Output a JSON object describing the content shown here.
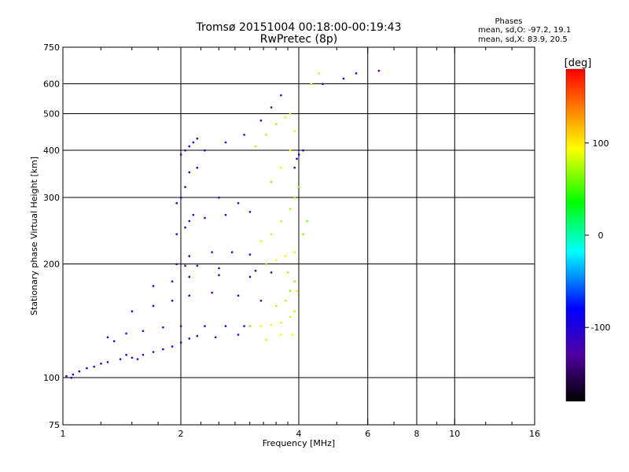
{
  "chart_data": {
    "type": "scatter",
    "title": "Tromsø 20151004 00:18:00-00:19:43",
    "subtitle": "RwPretec (8p)",
    "xlabel": "Frequency [MHz]",
    "ylabel": "Stationary phase Virtual Height [km]",
    "x_scale": "log",
    "y_scale": "log",
    "xlim": [
      1,
      16
    ],
    "ylim": [
      75,
      750
    ],
    "x_ticks": [
      1,
      2,
      4,
      6,
      8,
      10,
      16
    ],
    "x_tick_labels": [
      "1",
      "2",
      "4",
      "6",
      "8",
      "10",
      "16"
    ],
    "x_grid": [
      2,
      4,
      6,
      8,
      10
    ],
    "x_minor_ticks": [
      1.25,
      1.5,
      1.75,
      2.25,
      2.5,
      2.75,
      3,
      3.25,
      3.5,
      3.75,
      5,
      7,
      9,
      12,
      14
    ],
    "y_ticks": [
      75,
      100,
      200,
      300,
      400,
      500,
      600,
      750
    ],
    "y_tick_labels": [
      "75",
      "100",
      "200",
      "300",
      "400",
      "500",
      "600",
      "750"
    ],
    "y_grid": [
      100,
      200,
      300,
      400,
      500,
      600
    ],
    "grid": true,
    "stats": {
      "heading": "Phases",
      "line1": "mean, sd,O: -97.2, 19.1",
      "line2": "mean, sd,X:  83.9, 20.5"
    },
    "colorbar": {
      "label": "[deg]",
      "range": [
        -180,
        180
      ],
      "ticks": [
        100,
        0,
        -100
      ],
      "tick_labels": [
        "100",
        "0",
        "-100"
      ],
      "colors": [
        "#ff0000",
        "#ff8000",
        "#ffff00",
        "#00ff00",
        "#00ffff",
        "#0000ff",
        "#5000a0",
        "#000000"
      ]
    },
    "series": [
      {
        "name": "O",
        "mean_phase": -97.2,
        "points": [
          [
            1.02,
            101
          ],
          [
            1.06,
            102
          ],
          [
            1.1,
            104
          ],
          [
            1.15,
            106
          ],
          [
            1.2,
            107
          ],
          [
            1.25,
            109
          ],
          [
            1.3,
            110
          ],
          [
            1.4,
            112
          ],
          [
            1.5,
            113
          ],
          [
            1.6,
            115
          ],
          [
            1.7,
            117
          ],
          [
            1.8,
            119
          ],
          [
            1.9,
            121
          ],
          [
            2.0,
            124
          ],
          [
            2.1,
            127
          ],
          [
            2.2,
            129
          ],
          [
            1.3,
            128
          ],
          [
            1.45,
            131
          ],
          [
            1.6,
            133
          ],
          [
            1.8,
            136
          ],
          [
            2.0,
            137
          ],
          [
            2.3,
            137
          ],
          [
            2.6,
            137
          ],
          [
            2.9,
            137
          ],
          [
            1.5,
            150
          ],
          [
            1.7,
            155
          ],
          [
            1.9,
            160
          ],
          [
            2.1,
            165
          ],
          [
            2.4,
            168
          ],
          [
            2.8,
            165
          ],
          [
            3.2,
            160
          ],
          [
            1.7,
            175
          ],
          [
            1.9,
            180
          ],
          [
            2.1,
            185
          ],
          [
            2.5,
            187
          ],
          [
            3.0,
            185
          ],
          [
            1.95,
            200
          ],
          [
            2.05,
            198
          ],
          [
            2.2,
            198
          ],
          [
            2.5,
            195
          ],
          [
            3.1,
            192
          ],
          [
            3.4,
            190
          ],
          [
            2.1,
            210
          ],
          [
            2.4,
            215
          ],
          [
            2.7,
            215
          ],
          [
            3.0,
            212
          ],
          [
            1.95,
            240
          ],
          [
            2.05,
            250
          ],
          [
            2.1,
            260
          ],
          [
            2.15,
            270
          ],
          [
            2.3,
            265
          ],
          [
            2.6,
            270
          ],
          [
            3.0,
            275
          ],
          [
            1.95,
            290
          ],
          [
            2.0,
            300
          ],
          [
            2.05,
            320
          ],
          [
            2.1,
            350
          ],
          [
            2.2,
            360
          ],
          [
            2.5,
            300
          ],
          [
            2.8,
            290
          ],
          [
            2.0,
            390
          ],
          [
            2.05,
            400
          ],
          [
            2.1,
            410
          ],
          [
            2.15,
            420
          ],
          [
            2.2,
            430
          ],
          [
            2.3,
            400
          ],
          [
            2.6,
            420
          ],
          [
            2.9,
            440
          ],
          [
            3.2,
            480
          ],
          [
            3.4,
            520
          ],
          [
            3.6,
            560
          ],
          [
            3.9,
            360
          ],
          [
            3.95,
            380
          ],
          [
            4.0,
            390
          ],
          [
            4.1,
            400
          ],
          [
            4.6,
            600
          ],
          [
            5.2,
            620
          ],
          [
            5.6,
            640
          ],
          [
            6.4,
            650
          ],
          [
            1.45,
            115
          ],
          [
            1.55,
            112
          ],
          [
            2.45,
            128
          ],
          [
            2.8,
            130
          ],
          [
            1.05,
            100
          ],
          [
            1.35,
            125
          ]
        ]
      },
      {
        "name": "X",
        "mean_phase": 83.9,
        "points": [
          [
            3.0,
            137
          ],
          [
            3.2,
            137
          ],
          [
            3.4,
            138
          ],
          [
            3.6,
            140
          ],
          [
            3.8,
            145
          ],
          [
            3.9,
            150
          ],
          [
            3.5,
            155
          ],
          [
            3.7,
            160
          ],
          [
            3.8,
            170
          ],
          [
            3.9,
            180
          ],
          [
            3.3,
            200
          ],
          [
            3.5,
            205
          ],
          [
            3.7,
            210
          ],
          [
            3.9,
            215
          ],
          [
            3.2,
            230
          ],
          [
            3.4,
            240
          ],
          [
            3.6,
            260
          ],
          [
            3.8,
            280
          ],
          [
            3.9,
            300
          ],
          [
            4.0,
            320
          ],
          [
            3.4,
            330
          ],
          [
            3.6,
            360
          ],
          [
            3.8,
            400
          ],
          [
            3.9,
            450
          ],
          [
            3.8,
            500
          ],
          [
            3.7,
            490
          ],
          [
            3.1,
            410
          ],
          [
            3.3,
            440
          ],
          [
            3.5,
            470
          ],
          [
            4.1,
            240
          ],
          [
            4.2,
            260
          ],
          [
            3.95,
            170
          ],
          [
            3.85,
            130
          ],
          [
            3.6,
            130
          ],
          [
            3.3,
            126
          ],
          [
            4.3,
            600
          ],
          [
            4.5,
            640
          ],
          [
            3.75,
            190
          ]
        ]
      }
    ]
  }
}
